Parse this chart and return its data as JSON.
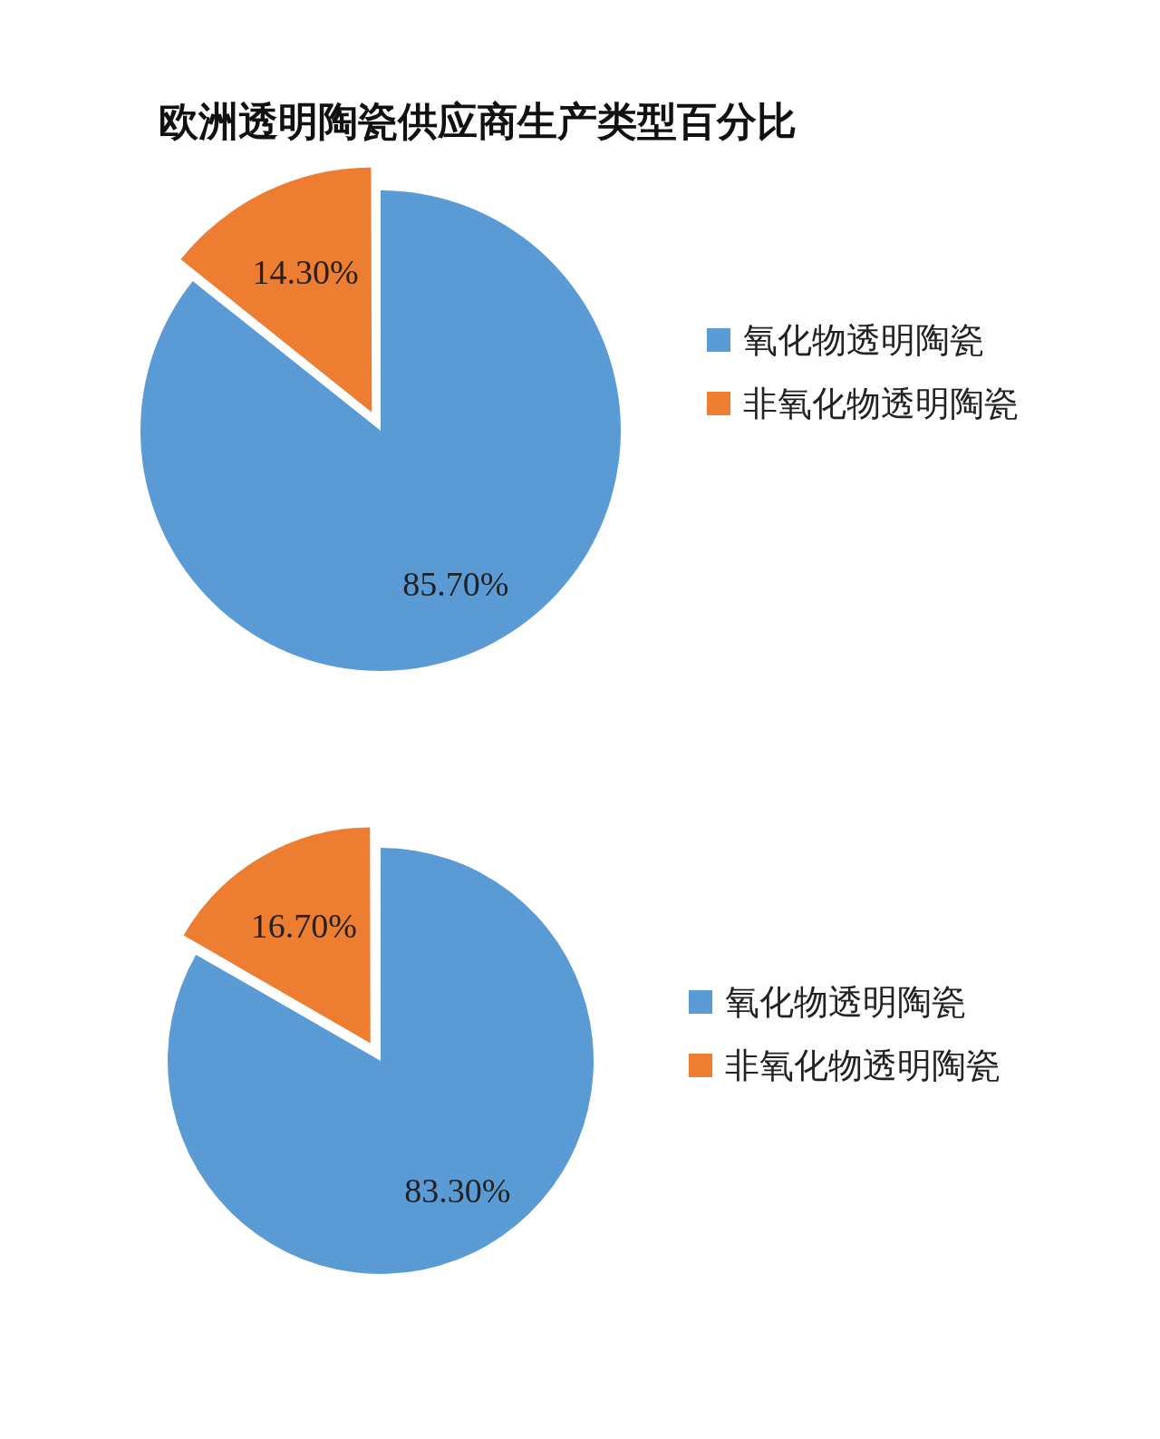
{
  "chart_data": [
    {
      "type": "pie",
      "title": "欧洲透明陶瓷供应商生产类型百分比",
      "categories": [
        "氧化物透明陶瓷",
        "非氧化物透明陶瓷"
      ],
      "values": [
        85.7,
        14.3
      ],
      "colors": [
        "#5b9bd5",
        "#ed7d31"
      ],
      "value_labels": [
        "85.70%",
        "14.30%"
      ],
      "legend": "right"
    },
    {
      "type": "pie",
      "categories": [
        "氧化物透明陶瓷",
        "非氧化物透明陶瓷"
      ],
      "values": [
        83.3,
        16.7
      ],
      "colors": [
        "#5b9bd5",
        "#ed7d31"
      ],
      "value_labels": [
        "83.30%",
        "16.70%"
      ],
      "legend": "right"
    }
  ]
}
